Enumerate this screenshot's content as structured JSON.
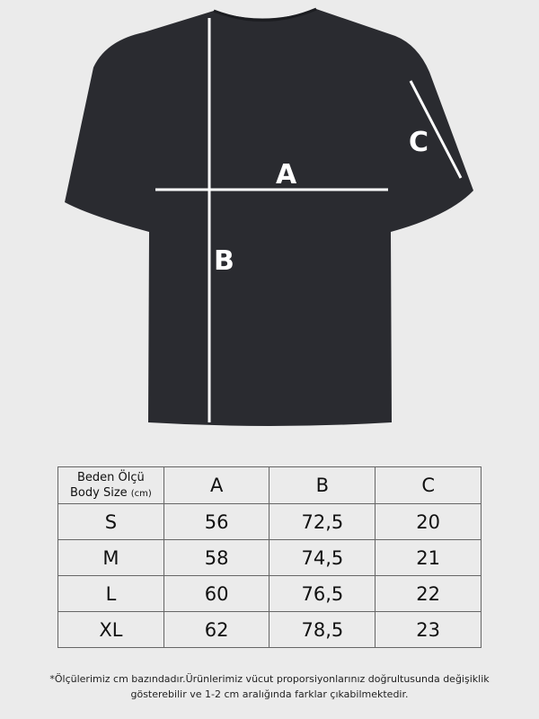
{
  "diagram": {
    "labels": {
      "a": "A",
      "b": "B",
      "c": "C"
    },
    "colors": {
      "background": "#ebebeb",
      "garment": "#2a2b30",
      "measure_line": "#ffffff"
    }
  },
  "size_table": {
    "header": {
      "label_tr": "Beden Ölçü",
      "label_en": "Body Size",
      "unit": "(cm)",
      "columns": [
        "A",
        "B",
        "C"
      ]
    },
    "rows": [
      {
        "size": "S",
        "values": [
          "56",
          "72,5",
          "20"
        ]
      },
      {
        "size": "M",
        "values": [
          "58",
          "74,5",
          "21"
        ]
      },
      {
        "size": "L",
        "values": [
          "60",
          "76,5",
          "22"
        ]
      },
      {
        "size": "XL",
        "values": [
          "62",
          "78,5",
          "23"
        ]
      }
    ]
  },
  "footnote": {
    "line1": "*Ölçülerimiz cm bazındadır.Ürünlerimiz vücut proporsiyonlarınız doğrultusunda değişiklik",
    "line2": "gösterebilir ve 1-2 cm aralığında farklar çıkabilmektedir."
  }
}
